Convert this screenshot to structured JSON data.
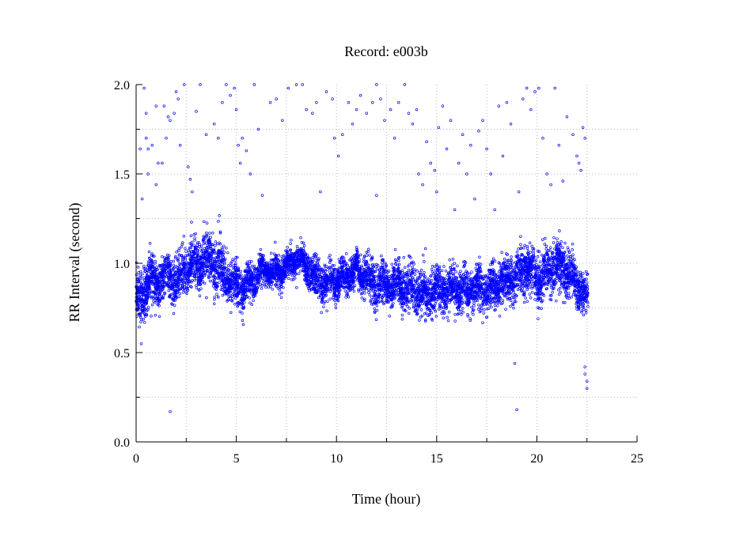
{
  "chart_data": {
    "type": "scatter",
    "title": "Record:  e003b",
    "xlabel": "Time (hour)",
    "ylabel": "RR Interval (second)",
    "xlim": [
      0,
      25
    ],
    "ylim": [
      0.0,
      2.0
    ],
    "x_ticks": [
      0,
      5,
      10,
      15,
      20,
      25
    ],
    "x_tick_labels": [
      "0",
      "5",
      "10",
      "15",
      "20",
      "25"
    ],
    "y_ticks": [
      0.0,
      0.5,
      1.0,
      1.5,
      2.0
    ],
    "y_tick_labels": [
      "0.0",
      "0.5",
      "1.0",
      "1.5",
      "2.0"
    ],
    "grid": true,
    "legend": "none",
    "marker_color": "#0000ff",
    "series": [
      {
        "profile": [
          [
            0.0,
            0.82,
            0.12
          ],
          [
            0.3,
            0.78,
            0.14
          ],
          [
            0.6,
            0.92,
            0.12
          ],
          [
            1.0,
            0.88,
            0.12
          ],
          [
            1.5,
            0.93,
            0.11
          ],
          [
            2.0,
            0.9,
            0.12
          ],
          [
            2.5,
            0.97,
            0.12
          ],
          [
            3.0,
            1.0,
            0.13
          ],
          [
            3.5,
            1.02,
            0.14
          ],
          [
            4.0,
            1.0,
            0.14
          ],
          [
            4.5,
            0.93,
            0.12
          ],
          [
            5.0,
            0.87,
            0.11
          ],
          [
            5.5,
            0.86,
            0.1
          ],
          [
            6.0,
            0.93,
            0.08
          ],
          [
            6.5,
            0.96,
            0.08
          ],
          [
            7.0,
            0.94,
            0.08
          ],
          [
            7.5,
            0.98,
            0.07
          ],
          [
            8.0,
            1.02,
            0.07
          ],
          [
            8.5,
            0.98,
            0.08
          ],
          [
            9.0,
            0.9,
            0.09
          ],
          [
            9.5,
            0.88,
            0.1
          ],
          [
            10.0,
            0.9,
            0.09
          ],
          [
            10.5,
            0.93,
            0.09
          ],
          [
            11.0,
            0.96,
            0.08
          ],
          [
            11.5,
            0.92,
            0.1
          ],
          [
            12.0,
            0.88,
            0.11
          ],
          [
            12.5,
            0.87,
            0.11
          ],
          [
            13.0,
            0.88,
            0.1
          ],
          [
            13.5,
            0.86,
            0.1
          ],
          [
            14.0,
            0.85,
            0.11
          ],
          [
            14.5,
            0.83,
            0.11
          ],
          [
            15.0,
            0.86,
            0.11
          ],
          [
            15.5,
            0.85,
            0.1
          ],
          [
            16.0,
            0.86,
            0.11
          ],
          [
            16.5,
            0.84,
            0.11
          ],
          [
            17.0,
            0.86,
            0.11
          ],
          [
            17.5,
            0.85,
            0.1
          ],
          [
            18.0,
            0.88,
            0.11
          ],
          [
            18.5,
            0.9,
            0.11
          ],
          [
            19.0,
            0.93,
            0.12
          ],
          [
            19.5,
            0.98,
            0.12
          ],
          [
            20.0,
            0.92,
            0.12
          ],
          [
            20.5,
            0.95,
            0.13
          ],
          [
            21.0,
            0.98,
            0.12
          ],
          [
            21.5,
            0.96,
            0.13
          ],
          [
            22.0,
            0.88,
            0.1
          ],
          [
            22.5,
            0.8,
            0.1
          ]
        ],
        "outliers": [
          [
            0.2,
            1.64
          ],
          [
            0.3,
            1.36
          ],
          [
            0.4,
            1.98
          ],
          [
            0.5,
            1.84
          ],
          [
            0.5,
            1.7
          ],
          [
            0.6,
            1.64
          ],
          [
            0.6,
            1.5
          ],
          [
            0.8,
            1.66
          ],
          [
            1.0,
            1.88
          ],
          [
            1.0,
            1.44
          ],
          [
            1.1,
            1.56
          ],
          [
            1.3,
            1.56
          ],
          [
            1.4,
            1.88
          ],
          [
            1.5,
            1.7
          ],
          [
            1.6,
            1.82
          ],
          [
            1.7,
            1.8
          ],
          [
            1.7,
            0.17
          ],
          [
            1.9,
            1.84
          ],
          [
            2.0,
            1.96
          ],
          [
            2.1,
            1.92
          ],
          [
            2.2,
            1.66
          ],
          [
            2.4,
            2.0
          ],
          [
            2.6,
            1.54
          ],
          [
            2.7,
            1.47
          ],
          [
            2.8,
            1.4
          ],
          [
            3.0,
            1.85
          ],
          [
            3.2,
            2.0
          ],
          [
            3.5,
            1.72
          ],
          [
            3.9,
            1.78
          ],
          [
            4.1,
            1.7
          ],
          [
            4.3,
            1.9
          ],
          [
            4.5,
            2.0
          ],
          [
            4.7,
            1.94
          ],
          [
            4.9,
            1.98
          ],
          [
            5.0,
            1.86
          ],
          [
            5.1,
            1.66
          ],
          [
            5.2,
            1.56
          ],
          [
            5.3,
            1.7
          ],
          [
            5.5,
            1.63
          ],
          [
            5.7,
            1.5
          ],
          [
            5.9,
            2.0
          ],
          [
            6.1,
            1.75
          ],
          [
            6.3,
            1.38
          ],
          [
            6.7,
            1.9
          ],
          [
            7.0,
            1.92
          ],
          [
            7.3,
            1.8
          ],
          [
            7.6,
            1.98
          ],
          [
            8.0,
            2.0
          ],
          [
            8.3,
            2.0
          ],
          [
            8.5,
            1.86
          ],
          [
            8.8,
            1.84
          ],
          [
            9.0,
            1.9
          ],
          [
            9.2,
            1.4
          ],
          [
            9.5,
            1.96
          ],
          [
            9.8,
            1.92
          ],
          [
            9.9,
            1.7
          ],
          [
            10.1,
            1.6
          ],
          [
            10.3,
            1.72
          ],
          [
            10.6,
            1.9
          ],
          [
            10.8,
            1.78
          ],
          [
            11.0,
            1.86
          ],
          [
            11.2,
            1.94
          ],
          [
            11.5,
            1.84
          ],
          [
            11.8,
            1.9
          ],
          [
            12.0,
            2.0
          ],
          [
            12.0,
            1.38
          ],
          [
            12.2,
            1.92
          ],
          [
            12.4,
            1.8
          ],
          [
            12.7,
            1.86
          ],
          [
            12.9,
            1.7
          ],
          [
            13.1,
            1.9
          ],
          [
            13.4,
            2.0
          ],
          [
            13.6,
            1.84
          ],
          [
            13.8,
            1.78
          ],
          [
            14.0,
            1.86
          ],
          [
            14.1,
            1.5
          ],
          [
            14.3,
            1.44
          ],
          [
            14.5,
            1.68
          ],
          [
            14.7,
            1.56
          ],
          [
            14.9,
            1.52
          ],
          [
            15.0,
            1.4
          ],
          [
            15.1,
            1.76
          ],
          [
            15.3,
            1.88
          ],
          [
            15.5,
            1.64
          ],
          [
            15.7,
            1.8
          ],
          [
            15.9,
            1.3
          ],
          [
            16.1,
            1.56
          ],
          [
            16.3,
            1.72
          ],
          [
            16.5,
            1.5
          ],
          [
            16.7,
            1.66
          ],
          [
            16.9,
            1.36
          ],
          [
            17.1,
            1.74
          ],
          [
            17.3,
            1.8
          ],
          [
            17.5,
            1.64
          ],
          [
            17.7,
            1.5
          ],
          [
            17.9,
            1.3
          ],
          [
            18.1,
            1.88
          ],
          [
            18.3,
            1.6
          ],
          [
            18.5,
            1.9
          ],
          [
            18.7,
            1.78
          ],
          [
            18.9,
            0.44
          ],
          [
            19.0,
            0.18
          ],
          [
            19.1,
            1.4
          ],
          [
            19.3,
            1.92
          ],
          [
            19.5,
            1.98
          ],
          [
            19.7,
            1.86
          ],
          [
            19.9,
            1.96
          ],
          [
            20.1,
            1.98
          ],
          [
            20.3,
            1.7
          ],
          [
            20.5,
            1.5
          ],
          [
            20.7,
            1.44
          ],
          [
            20.9,
            1.98
          ],
          [
            21.1,
            1.66
          ],
          [
            21.3,
            1.46
          ],
          [
            21.5,
            1.82
          ],
          [
            21.8,
            1.72
          ],
          [
            22.0,
            1.6
          ],
          [
            22.1,
            1.56
          ],
          [
            22.2,
            1.52
          ],
          [
            22.3,
            1.76
          ],
          [
            22.4,
            0.42
          ],
          [
            22.4,
            0.38
          ],
          [
            22.5,
            0.34
          ],
          [
            22.5,
            0.3
          ],
          [
            22.4,
            1.7
          ]
        ],
        "t_max": 22.55
      }
    ]
  }
}
